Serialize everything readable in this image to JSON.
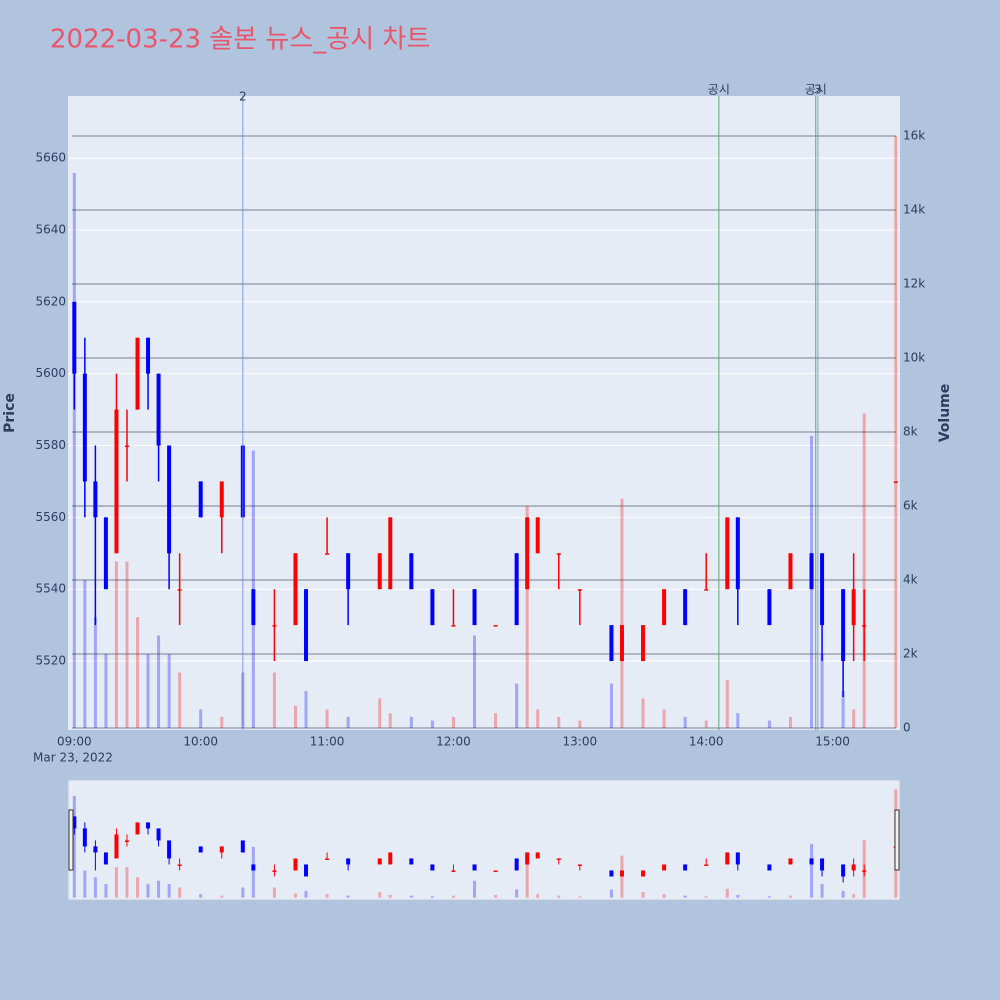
{
  "chart_data": {
    "type": "candlestick",
    "title": "2022-03-23 솔본 뉴스_공시 차트",
    "ylabel": "Price",
    "y2label": "Volume",
    "x_date_label": "Mar 23, 2022",
    "up_color": "#ff0000",
    "down_color": "#0000ff",
    "x": [
      "09:00",
      "09:05",
      "09:10",
      "09:15",
      "09:20",
      "09:25",
      "09:30",
      "09:35",
      "09:40",
      "09:45",
      "09:50",
      "10:00",
      "10:10",
      "10:20",
      "10:25",
      "10:35",
      "10:45",
      "10:50",
      "11:00",
      "11:10",
      "11:25",
      "11:30",
      "11:40",
      "11:50",
      "12:00",
      "12:10",
      "12:20",
      "12:30",
      "12:35",
      "12:40",
      "12:50",
      "13:00",
      "13:15",
      "13:20",
      "13:30",
      "13:40",
      "13:50",
      "14:00",
      "14:10",
      "14:15",
      "14:30",
      "14:40",
      "14:50",
      "14:55",
      "15:05",
      "15:10",
      "15:15",
      "15:30"
    ],
    "open": [
      5620,
      5600,
      5570,
      5560,
      5550,
      5580,
      5590,
      5610,
      5600,
      5580,
      5540,
      5570,
      5560,
      5580,
      5540,
      5530,
      5530,
      5540,
      5550,
      5550,
      5540,
      5540,
      5550,
      5540,
      5530,
      5540,
      5530,
      5550,
      5540,
      5550,
      5550,
      5540,
      5530,
      5520,
      5520,
      5530,
      5540,
      5540,
      5540,
      5560,
      5540,
      5540,
      5550,
      5550,
      5540,
      5530,
      5530,
      5570
    ],
    "high": [
      5620,
      5610,
      5580,
      5560,
      5600,
      5590,
      5610,
      5610,
      5600,
      5580,
      5550,
      5570,
      5570,
      5580,
      5540,
      5540,
      5550,
      5540,
      5560,
      5550,
      5550,
      5560,
      5550,
      5540,
      5540,
      5540,
      5530,
      5550,
      5560,
      5560,
      5550,
      5540,
      5530,
      5530,
      5530,
      5540,
      5540,
      5550,
      5560,
      5560,
      5540,
      5550,
      5550,
      5550,
      5540,
      5550,
      5540,
      5570
    ],
    "low": [
      5590,
      5560,
      5530,
      5540,
      5550,
      5570,
      5590,
      5590,
      5570,
      5540,
      5530,
      5560,
      5550,
      5560,
      5530,
      5520,
      5530,
      5520,
      5550,
      5530,
      5540,
      5540,
      5540,
      5530,
      5530,
      5530,
      5530,
      5530,
      5540,
      5550,
      5540,
      5530,
      5520,
      5520,
      5520,
      5530,
      5530,
      5540,
      5540,
      5530,
      5530,
      5540,
      5540,
      5520,
      5510,
      5520,
      5520,
      5570
    ],
    "close": [
      5600,
      5570,
      5560,
      5540,
      5590,
      5580,
      5610,
      5600,
      5580,
      5550,
      5540,
      5560,
      5570,
      5560,
      5530,
      5530,
      5550,
      5520,
      5550,
      5540,
      5550,
      5560,
      5540,
      5530,
      5530,
      5530,
      5530,
      5530,
      5560,
      5560,
      5550,
      5540,
      5520,
      5530,
      5530,
      5540,
      5530,
      5540,
      5560,
      5540,
      5530,
      5550,
      5540,
      5530,
      5520,
      5540,
      5530,
      5570
    ],
    "volume": [
      15000,
      4000,
      3000,
      2000,
      4500,
      4500,
      3000,
      2000,
      2500,
      2000,
      1500,
      500,
      300,
      1500,
      7500,
      1500,
      600,
      1000,
      500,
      300,
      800,
      400,
      300,
      200,
      300,
      2500,
      400,
      1200,
      6000,
      500,
      300,
      200,
      1200,
      6200,
      800,
      500,
      300,
      200,
      1300,
      400,
      200,
      300,
      7900,
      2000,
      1000,
      500,
      8500,
      16000
    ],
    "xlim": [
      "08:57",
      "15:32"
    ],
    "xticks": [
      "09:00",
      "10:00",
      "11:00",
      "12:00",
      "13:00",
      "14:00",
      "15:00"
    ],
    "ylim": [
      5500.8,
      5677.3
    ],
    "yticks": [
      5520,
      5540,
      5560,
      5580,
      5600,
      5620,
      5640,
      5660
    ],
    "y2lim": [
      -54,
      17081
    ],
    "y2ticks": [
      0,
      {
        "value": 2000,
        "label": "2k"
      },
      {
        "value": 4000,
        "label": "4k"
      },
      {
        "value": 6000,
        "label": "6k"
      },
      {
        "value": 8000,
        "label": "8k"
      },
      {
        "value": 10000,
        "label": "10k"
      },
      {
        "value": 12000,
        "label": "12k"
      },
      {
        "value": 14000,
        "label": "14k"
      },
      {
        "value": 16000,
        "label": "16k"
      }
    ],
    "vlines": [
      {
        "x": "10:20",
        "label": "2",
        "color": "#6f7fe6"
      },
      {
        "x": "14:06",
        "label": "공시",
        "color": "#3a9a4a"
      },
      {
        "x": "14:52",
        "label": "공시",
        "color": "#3a9a4a"
      },
      {
        "x": "14:53",
        "label": "3",
        "color": "#6f7fe6"
      }
    ]
  }
}
